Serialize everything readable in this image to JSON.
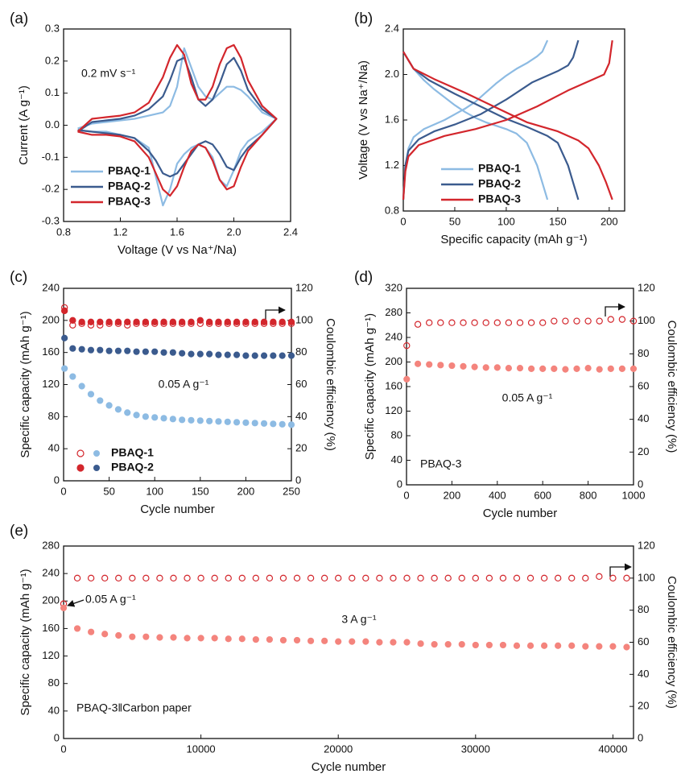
{
  "chart_data": [
    {
      "type": "line",
      "label": "(a)",
      "xlabel": "Voltage (V vs Na⁺/Na)",
      "ylabel": "Current (A g⁻¹)",
      "xlim": [
        0.8,
        2.4
      ],
      "xticks": [
        0.8,
        1.2,
        1.6,
        {
          "value": 2,
          "label": "2.0"
        },
        2.4
      ],
      "ylim": [
        -0.3,
        0.3
      ],
      "yticks": [
        -0.3,
        -0.2,
        -0.1,
        {
          "value": 0,
          "label": "0.0"
        },
        0.1,
        0.2,
        0.3
      ],
      "annotations": [
        "0.2 mV s⁻¹"
      ],
      "legend": "lower left",
      "x": [
        0.9,
        1.0,
        1.1,
        1.2,
        1.3,
        1.4,
        1.5,
        1.55,
        1.6,
        1.65,
        1.7,
        1.75,
        1.8,
        1.85,
        1.9,
        1.95,
        2.0,
        2.05,
        2.1,
        2.2,
        2.3,
        2.3,
        2.2,
        2.1,
        2.05,
        2.0,
        1.95,
        1.9,
        1.85,
        1.8,
        1.75,
        1.7,
        1.65,
        1.6,
        1.55,
        1.5,
        1.45,
        1.4,
        1.3,
        1.2,
        1.1,
        1.0,
        0.9
      ],
      "series": [
        {
          "name": "PBAQ-1",
          "color": "#8dbbe3",
          "values": [
            -0.01,
            0.005,
            0.01,
            0.015,
            0.02,
            0.03,
            0.04,
            0.06,
            0.12,
            0.24,
            0.18,
            0.12,
            0.09,
            0.08,
            0.1,
            0.12,
            0.12,
            0.11,
            0.09,
            0.04,
            0.02,
            0.02,
            -0.02,
            -0.05,
            -0.08,
            -0.14,
            -0.19,
            -0.17,
            -0.1,
            -0.07,
            -0.06,
            -0.07,
            -0.09,
            -0.12,
            -0.2,
            -0.25,
            -0.16,
            -0.07,
            -0.04,
            -0.03,
            -0.02,
            -0.02,
            -0.015
          ]
        },
        {
          "name": "PBAQ-2",
          "color": "#3b5b8e",
          "values": [
            -0.02,
            0.01,
            0.015,
            0.02,
            0.03,
            0.05,
            0.09,
            0.14,
            0.2,
            0.21,
            0.15,
            0.08,
            0.06,
            0.08,
            0.13,
            0.19,
            0.21,
            0.17,
            0.11,
            0.05,
            0.02,
            0.02,
            -0.03,
            -0.07,
            -0.1,
            -0.14,
            -0.13,
            -0.09,
            -0.06,
            -0.05,
            -0.06,
            -0.09,
            -0.12,
            -0.15,
            -0.16,
            -0.15,
            -0.11,
            -0.08,
            -0.04,
            -0.03,
            -0.025,
            -0.02,
            -0.015
          ]
        },
        {
          "name": "PBAQ-3",
          "color": "#d3262c",
          "values": [
            -0.02,
            0.02,
            0.025,
            0.03,
            0.04,
            0.07,
            0.15,
            0.21,
            0.25,
            0.22,
            0.13,
            0.08,
            0.08,
            0.12,
            0.19,
            0.24,
            0.25,
            0.21,
            0.14,
            0.06,
            0.02,
            0.02,
            -0.03,
            -0.08,
            -0.13,
            -0.19,
            -0.2,
            -0.17,
            -0.11,
            -0.07,
            -0.06,
            -0.08,
            -0.13,
            -0.19,
            -0.22,
            -0.2,
            -0.15,
            -0.1,
            -0.05,
            -0.035,
            -0.03,
            -0.03,
            -0.02
          ]
        }
      ]
    },
    {
      "type": "charge",
      "label": "(b)",
      "xlabel": "Specific capacity (mAh g⁻¹)",
      "ylabel": "Voltage (V vs Na⁺/Na)",
      "xlim": [
        0,
        215
      ],
      "xticks": [
        0,
        50,
        100,
        150,
        200
      ],
      "ylim": [
        0.8,
        2.4
      ],
      "yticks": [
        0.8,
        1.2,
        1.6,
        {
          "value": 2,
          "label": "2.0"
        },
        2.4
      ],
      "legend": "lower left",
      "series": [
        {
          "name": "PBAQ-1",
          "color": "#8dbbe3",
          "discharge": {
            "x": [
              0,
              10,
              20,
              30,
              40,
              50,
              60,
              70,
              80,
              90,
              100,
              110,
              120,
              130,
              135,
              140
            ],
            "values": [
              2.2,
              2.05,
              1.95,
              1.87,
              1.8,
              1.73,
              1.67,
              1.62,
              1.58,
              1.55,
              1.52,
              1.48,
              1.4,
              1.2,
              1.05,
              0.9
            ]
          },
          "charge": {
            "x": [
              0,
              2,
              5,
              10,
              20,
              30,
              40,
              50,
              60,
              70,
              80,
              90,
              100,
              110,
              120,
              130,
              135,
              140
            ],
            "values": [
              0.9,
              1.2,
              1.35,
              1.45,
              1.52,
              1.56,
              1.6,
              1.65,
              1.7,
              1.76,
              1.84,
              1.92,
              1.99,
              2.05,
              2.1,
              2.16,
              2.2,
              2.3
            ]
          }
        },
        {
          "name": "PBAQ-2",
          "color": "#3b5b8e",
          "discharge": {
            "x": [
              0,
              10,
              25,
              50,
              75,
              100,
              120,
              140,
              150,
              160,
              165,
              170
            ],
            "values": [
              2.2,
              2.05,
              1.95,
              1.83,
              1.72,
              1.61,
              1.54,
              1.46,
              1.4,
              1.2,
              1.05,
              0.9
            ]
          },
          "charge": {
            "x": [
              0,
              2,
              5,
              15,
              30,
              50,
              75,
              100,
              125,
              150,
              160,
              165,
              170
            ],
            "values": [
              0.9,
              1.2,
              1.33,
              1.43,
              1.5,
              1.56,
              1.65,
              1.78,
              1.93,
              2.03,
              2.08,
              2.15,
              2.3
            ]
          }
        },
        {
          "name": "PBAQ-3",
          "color": "#d3262c",
          "discharge": {
            "x": [
              0,
              10,
              30,
              60,
              90,
              120,
              150,
              170,
              180,
              190,
              197,
              203
            ],
            "values": [
              2.2,
              2.05,
              1.96,
              1.84,
              1.71,
              1.58,
              1.5,
              1.42,
              1.35,
              1.2,
              1.05,
              0.9
            ]
          },
          "charge": {
            "x": [
              0,
              2,
              5,
              15,
              40,
              70,
              100,
              130,
              160,
              180,
              195,
              200,
              203
            ],
            "values": [
              0.9,
              1.15,
              1.28,
              1.38,
              1.46,
              1.52,
              1.6,
              1.72,
              1.86,
              1.94,
              2.0,
              2.1,
              2.3
            ]
          }
        }
      ]
    },
    {
      "type": "scatter",
      "label": "(c)",
      "xlabel": "Cycle number",
      "ylabel": "Specific capacity (mAh g⁻¹)",
      "y2label": "Coulombic efficiency (%)",
      "xlim": [
        0,
        250
      ],
      "xticks": [
        0,
        50,
        100,
        150,
        200,
        250
      ],
      "ylim": [
        0,
        240
      ],
      "yticks": [
        0,
        40,
        80,
        120,
        160,
        200,
        240
      ],
      "y2lim": [
        0,
        120
      ],
      "y2ticks": [
        0,
        20,
        40,
        60,
        80,
        100,
        120
      ],
      "annotations": [
        "0.05 A g⁻¹"
      ],
      "legend": "lower left",
      "x": [
        1,
        10,
        20,
        30,
        40,
        50,
        60,
        70,
        80,
        90,
        100,
        110,
        120,
        130,
        140,
        150,
        160,
        170,
        180,
        190,
        200,
        210,
        220,
        230,
        240,
        250
      ],
      "series": [
        {
          "name": "PBAQ-1",
          "color": "#8dbbe3",
          "values": [
            140,
            130,
            118,
            108,
            100,
            94,
            89,
            85,
            82,
            80,
            79,
            78,
            77,
            76,
            75.5,
            75,
            74.5,
            74,
            73.5,
            73,
            72.5,
            72,
            71.5,
            71,
            70.5,
            70
          ],
          "ce": {
            "color": "#d3262c",
            "marker": "open",
            "axis": "y2",
            "values": [
              108,
              97,
              98,
              97,
              97,
              98,
              98,
              97,
              98,
              98,
              98,
              98,
              98,
              98,
              98,
              98,
              98,
              98,
              98,
              98,
              98,
              98,
              98,
              98,
              98,
              98
            ]
          }
        },
        {
          "name": "PBAQ-2",
          "color": "#3b5b8e",
          "values": [
            178,
            165,
            164,
            163,
            163,
            162,
            162,
            162,
            161,
            161,
            161,
            160,
            160,
            159,
            158,
            158,
            158,
            157,
            157,
            157,
            156,
            156,
            156,
            156,
            156,
            156
          ],
          "ce": {
            "color": "#d3262c",
            "marker": "filled",
            "axis": "y2",
            "values": [
              106,
              100,
              99,
              99,
              99,
              99,
              99,
              99,
              99,
              99,
              99,
              99,
              99,
              99,
              99,
              100,
              99,
              99,
              99,
              99,
              99,
              99,
              99,
              99,
              99,
              99
            ]
          }
        }
      ]
    },
    {
      "type": "scatter",
      "label": "(d)",
      "xlabel": "Cycle number",
      "ylabel": "Specific capacity (mAh g⁻¹)",
      "y2label": "Coulombic efficiency (%)",
      "xlim": [
        0,
        1000
      ],
      "xticks": [
        0,
        200,
        400,
        600,
        800,
        1000
      ],
      "ylim": [
        0,
        320
      ],
      "yticks": [
        0,
        40,
        80,
        120,
        160,
        200,
        240,
        280,
        320
      ],
      "y2lim": [
        0,
        120
      ],
      "y2ticks": [
        0,
        20,
        40,
        60,
        80,
        100,
        120
      ],
      "annotations": [
        "0.05 A g⁻¹",
        "PBAQ-3"
      ],
      "x": [
        1,
        50,
        100,
        150,
        200,
        250,
        300,
        350,
        400,
        450,
        500,
        550,
        600,
        650,
        700,
        750,
        800,
        850,
        900,
        950,
        1000
      ],
      "series": [
        {
          "color": "#f4847d",
          "values": [
            172,
            197,
            196,
            195,
            194,
            193,
            192,
            191,
            191,
            190,
            190,
            189,
            189,
            189,
            188,
            189,
            190,
            188,
            189,
            189,
            189
          ],
          "ce": {
            "color": "#d3262c",
            "marker": "open",
            "axis": "y2",
            "values": [
              85,
              98,
              99,
              99,
              99,
              99,
              99,
              99,
              99,
              99,
              99,
              99,
              99,
              100,
              100,
              100,
              100,
              100,
              101,
              101,
              100
            ]
          }
        }
      ]
    },
    {
      "type": "scatter",
      "label": "(e)",
      "xlabel": "Cycle number",
      "ylabel": "Specific capacity (mAh g⁻¹)",
      "y2label": "Coulombic efficiency (%)",
      "xlim": [
        0,
        41500
      ],
      "xticks": [
        0,
        10000,
        20000,
        30000,
        40000
      ],
      "ylim": [
        0,
        280
      ],
      "yticks": [
        0,
        40,
        80,
        120,
        160,
        200,
        240,
        280
      ],
      "y2lim": [
        0,
        120
      ],
      "y2ticks": [
        0,
        20,
        40,
        60,
        80,
        100,
        120
      ],
      "annotations": [
        "0.05 A g⁻¹",
        "3 A g⁻¹",
        "PBAQ-3‖Carbon paper"
      ],
      "x": [
        1,
        1000,
        2000,
        3000,
        4000,
        5000,
        6000,
        7000,
        8000,
        9000,
        10000,
        11000,
        12000,
        13000,
        14000,
        15000,
        16000,
        17000,
        18000,
        19000,
        20000,
        21000,
        22000,
        23000,
        24000,
        25000,
        26000,
        27000,
        28000,
        29000,
        30000,
        31000,
        32000,
        33000,
        34000,
        35000,
        36000,
        37000,
        38000,
        39000,
        40000,
        41000
      ],
      "series": [
        {
          "color": "#f4847d",
          "values": [
            190,
            160,
            155,
            152,
            150,
            148,
            148,
            147,
            147,
            146,
            146,
            146,
            145,
            145,
            144,
            144,
            143,
            143,
            142,
            142,
            141,
            141,
            141,
            140,
            140,
            140,
            138,
            137,
            137,
            137,
            136,
            136,
            136,
            135,
            135,
            135,
            135,
            135,
            134,
            134,
            134,
            133
          ],
          "ce": {
            "color": "#d3262c",
            "marker": "open",
            "axis": "y2",
            "values": [
              84,
              100,
              100,
              100,
              100,
              100,
              100,
              100,
              100,
              100,
              100,
              100,
              100,
              100,
              100,
              100,
              100,
              100,
              100,
              100,
              100,
              100,
              100,
              100,
              100,
              100,
              100,
              100,
              100,
              100,
              100,
              100,
              100,
              100,
              100,
              100,
              100,
              100,
              100,
              101,
              100,
              100
            ]
          }
        }
      ]
    }
  ]
}
